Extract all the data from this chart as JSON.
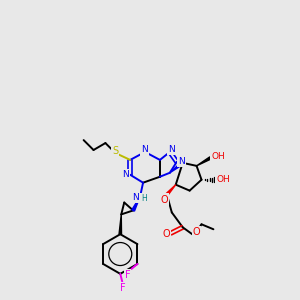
{
  "bg_color": "#e8e8e8",
  "colors": {
    "C": "#000000",
    "N": "#0000ee",
    "O": "#ee0000",
    "S": "#bbbb00",
    "F": "#ee00ee",
    "H": "#008080"
  }
}
